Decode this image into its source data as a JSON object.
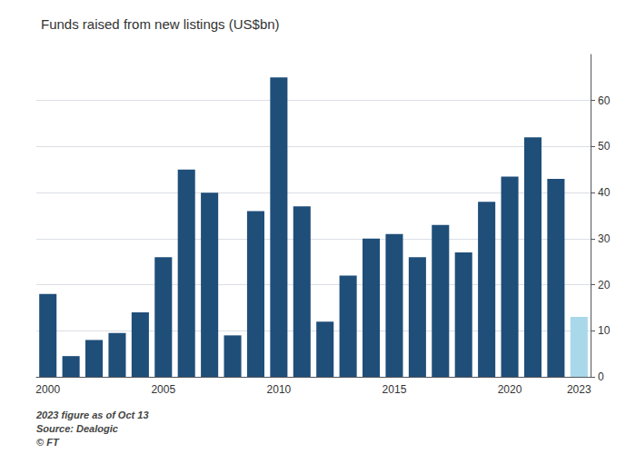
{
  "chart_data": {
    "type": "bar",
    "title": "Funds raised from new listings (US$bn)",
    "categories": [
      "2000",
      null,
      null,
      null,
      null,
      "2005",
      null,
      null,
      null,
      null,
      "2010",
      null,
      null,
      null,
      null,
      "2015",
      null,
      null,
      null,
      null,
      "2020",
      null,
      null,
      "2023"
    ],
    "values": [
      18.0,
      4.5,
      8.0,
      9.5,
      14.0,
      26.0,
      45.0,
      40.0,
      9.0,
      36.0,
      65.0,
      37.0,
      12.0,
      22.0,
      30.0,
      31.0,
      26.0,
      33.0,
      27.0,
      38.0,
      43.5,
      52.0,
      43.0,
      13.0
    ],
    "colors": [
      "#1f4e79",
      "#1f4e79",
      "#1f4e79",
      "#1f4e79",
      "#1f4e79",
      "#1f4e79",
      "#1f4e79",
      "#1f4e79",
      "#1f4e79",
      "#1f4e79",
      "#1f4e79",
      "#1f4e79",
      "#1f4e79",
      "#1f4e79",
      "#1f4e79",
      "#1f4e79",
      "#1f4e79",
      "#1f4e79",
      "#1f4e79",
      "#1f4e79",
      "#1f4e79",
      "#1f4e79",
      "#1f4e79",
      "#a8d8ea"
    ],
    "ylim": [
      0,
      70
    ],
    "yticks": [
      0,
      10,
      20,
      30,
      40,
      50,
      60
    ],
    "grid": true,
    "annotations": [
      "2023 figure as of Oct 13",
      "Source: Dealogic",
      "© FT"
    ]
  }
}
